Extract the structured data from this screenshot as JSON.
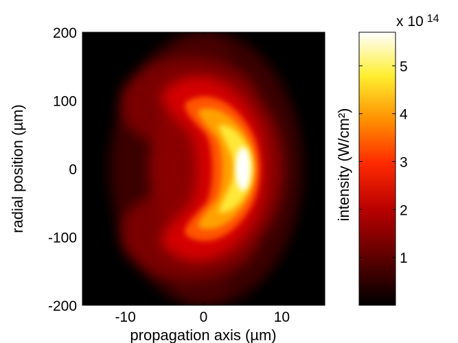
{
  "chart_data": {
    "type": "heatmap",
    "title": "",
    "xlabel": "propagation axis (µm)",
    "ylabel": "radial position (µm)",
    "xlim": [
      -15.5,
      15.5
    ],
    "ylim": [
      -200,
      200
    ],
    "xticks": [
      -10,
      0,
      10
    ],
    "yticks": [
      -200,
      -100,
      0,
      100,
      200
    ],
    "colorbar": {
      "label": "intensity (W/cm²)",
      "multiplier": "x 10",
      "exponent": "14",
      "ticks": [
        1,
        2,
        3,
        4,
        5
      ],
      "range": [
        0,
        5.7
      ],
      "colormap": "hot",
      "colors": [
        "#000000",
        "#660000",
        "#cc0000",
        "#ff3300",
        "#ff9900",
        "#ffff33",
        "#ffffff"
      ]
    },
    "peak": {
      "x": 5.5,
      "y": 0,
      "value": 5.7
    },
    "feature": "crescent-shaped intensity distribution, bright arc curving from (0, ±80) to peak at (5.5, 0), with faint side lobes near x ≈ -3 to 2 at |y| > 120"
  }
}
